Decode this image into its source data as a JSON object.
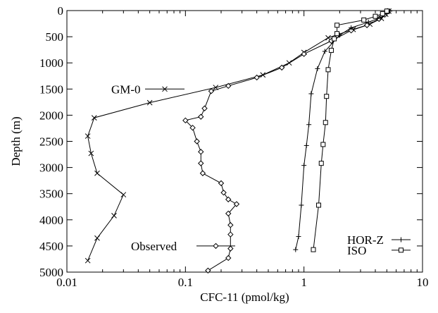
{
  "chart_data": {
    "type": "line",
    "title": "",
    "xlabel": "CFC-11 (pmol/kg)",
    "ylabel": "Depth (m)",
    "x_scale": "log",
    "xlim": [
      0.01,
      10
    ],
    "ylim": [
      5000,
      0
    ],
    "y_inverted": true,
    "grid": false,
    "x_ticks": [
      0.01,
      0.1,
      1,
      10
    ],
    "x_tick_labels": [
      "0.01",
      "0.1",
      "1",
      "10"
    ],
    "y_ticks": [
      0,
      500,
      1000,
      1500,
      2000,
      2500,
      3000,
      3500,
      4000,
      4500,
      5000
    ],
    "y_tick_labels": [
      "0",
      "500",
      "1000",
      "1500",
      "2000",
      "2500",
      "3000",
      "3500",
      "4000",
      "4500",
      "5000"
    ],
    "color": "#000000",
    "series": [
      {
        "name": "GM-0",
        "marker": "x",
        "legend_anchor_depth": 1500,
        "points": [
          [
            5.2,
            10
          ],
          [
            4.9,
            70
          ],
          [
            4.5,
            150
          ],
          [
            3.6,
            260
          ],
          [
            2.6,
            360
          ],
          [
            1.6,
            520
          ],
          [
            1.0,
            800
          ],
          [
            0.75,
            1000
          ],
          [
            0.45,
            1230
          ],
          [
            0.18,
            1470
          ],
          [
            0.05,
            1760
          ],
          [
            0.017,
            2050
          ],
          [
            0.015,
            2400
          ],
          [
            0.016,
            2730
          ],
          [
            0.018,
            3110
          ],
          [
            0.03,
            3520
          ],
          [
            0.025,
            3920
          ],
          [
            0.018,
            4350
          ],
          [
            0.015,
            4780
          ]
        ]
      },
      {
        "name": "Observed",
        "marker": "diamond",
        "legend_anchor_depth": 4500,
        "points": [
          [
            5.1,
            10
          ],
          [
            4.8,
            80
          ],
          [
            4.3,
            160
          ],
          [
            3.4,
            280
          ],
          [
            2.5,
            380
          ],
          [
            1.7,
            580
          ],
          [
            1.0,
            830
          ],
          [
            0.65,
            1090
          ],
          [
            0.4,
            1280
          ],
          [
            0.23,
            1440
          ],
          [
            0.165,
            1540
          ],
          [
            0.145,
            1870
          ],
          [
            0.135,
            2030
          ],
          [
            0.1,
            2100
          ],
          [
            0.115,
            2240
          ],
          [
            0.125,
            2500
          ],
          [
            0.135,
            2700
          ],
          [
            0.135,
            2920
          ],
          [
            0.14,
            3110
          ],
          [
            0.2,
            3300
          ],
          [
            0.21,
            3480
          ],
          [
            0.23,
            3610
          ],
          [
            0.27,
            3700
          ],
          [
            0.23,
            3880
          ],
          [
            0.24,
            4100
          ],
          [
            0.24,
            4280
          ],
          [
            0.24,
            4550
          ],
          [
            0.23,
            4730
          ],
          [
            0.155,
            4970
          ]
        ]
      },
      {
        "name": "HOR-Z",
        "marker": "plus",
        "legend_anchor_depth": 4380,
        "points": [
          [
            5.3,
            10
          ],
          [
            5.0,
            60
          ],
          [
            4.4,
            140
          ],
          [
            3.5,
            220
          ],
          [
            2.5,
            330
          ],
          [
            2.0,
            470
          ],
          [
            1.5,
            780
          ],
          [
            1.3,
            1110
          ],
          [
            1.15,
            1590
          ],
          [
            1.1,
            2180
          ],
          [
            1.05,
            2580
          ],
          [
            1.0,
            2960
          ],
          [
            0.95,
            3720
          ],
          [
            0.9,
            4320
          ],
          [
            0.85,
            4570
          ]
        ]
      },
      {
        "name": "ISO",
        "marker": "square",
        "legend_anchor_depth": 4580,
        "points": [
          [
            5.0,
            10
          ],
          [
            4.6,
            60
          ],
          [
            4.0,
            110
          ],
          [
            3.2,
            180
          ],
          [
            1.9,
            280
          ],
          [
            1.9,
            440
          ],
          [
            1.8,
            540
          ],
          [
            1.7,
            760
          ],
          [
            1.6,
            1130
          ],
          [
            1.55,
            1640
          ],
          [
            1.52,
            2140
          ],
          [
            1.45,
            2560
          ],
          [
            1.4,
            2920
          ],
          [
            1.33,
            3720
          ],
          [
            1.2,
            4570
          ]
        ]
      }
    ]
  }
}
